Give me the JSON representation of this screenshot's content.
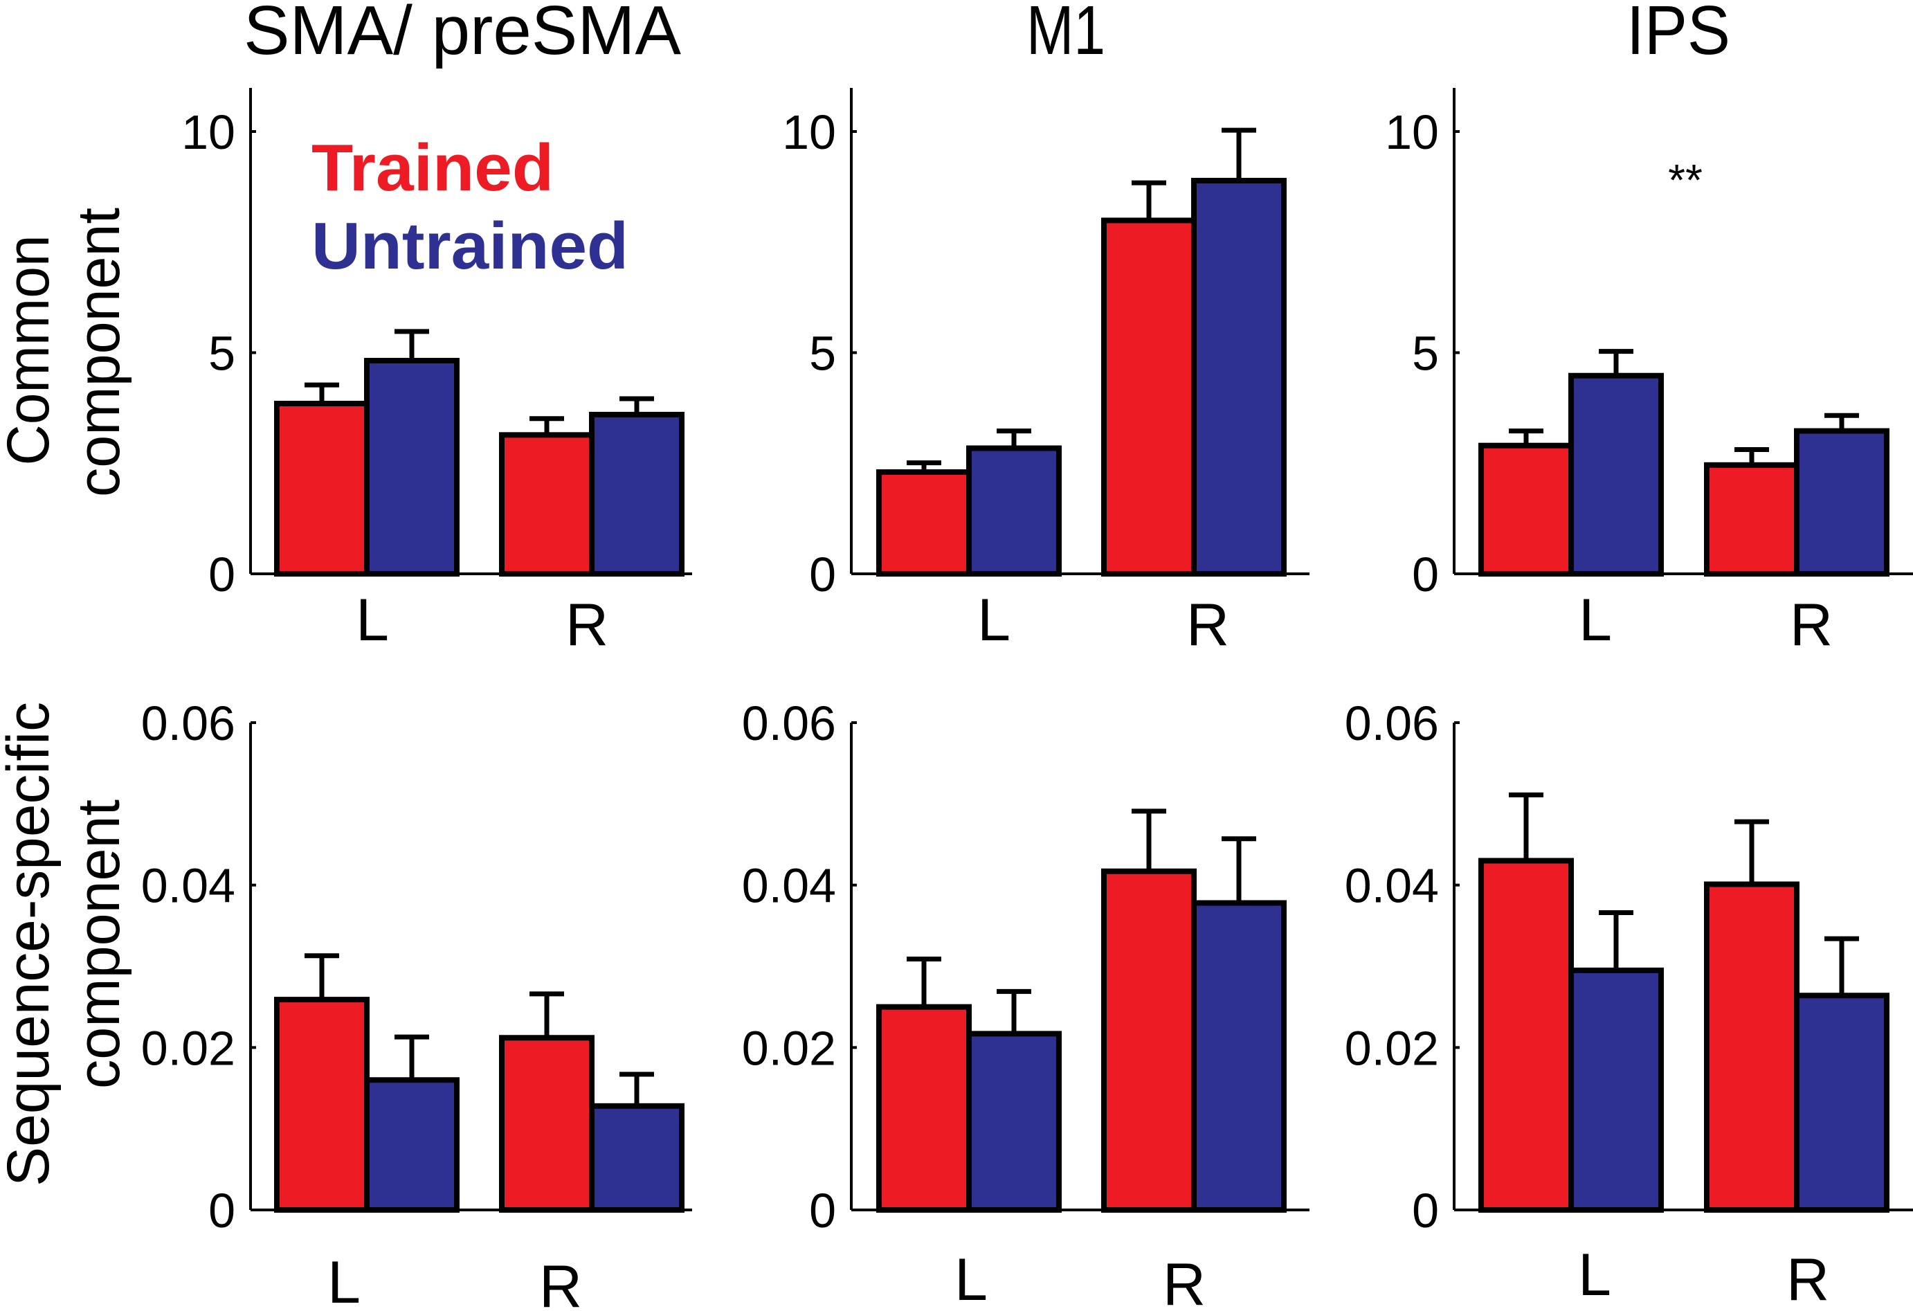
{
  "colors": {
    "trained": "#ED1C24",
    "untrained": "#2E3192",
    "axis": "#000000",
    "background": "#FFFFFF"
  },
  "legend": {
    "placement": "top-left of first panel",
    "items": [
      {
        "label": "Trained",
        "color": "#ED1C24"
      },
      {
        "label": "Untrained",
        "color": "#2E3192"
      }
    ]
  },
  "row_labels": {
    "top": [
      "Common",
      "component"
    ],
    "bottom": [
      "Sequence-specific",
      "component"
    ]
  },
  "column_titles": [
    "SMA/ preSMA",
    "M1",
    "IPS"
  ],
  "chart_data": [
    {
      "type": "bar",
      "title": "SMA/ preSMA",
      "ylabel": "Common component",
      "xlabel": "",
      "categories": [
        "L",
        "R"
      ],
      "ylim": [
        0,
        11
      ],
      "yticks": [
        0,
        5,
        10
      ],
      "ytick_labels": [
        "0",
        "5",
        "10"
      ],
      "grid": false,
      "series": [
        {
          "name": "Trained",
          "values": [
            3.85,
            3.14
          ],
          "error": [
            0.42,
            0.37
          ]
        },
        {
          "name": "Untrained",
          "values": [
            4.82,
            3.6
          ],
          "error": [
            0.66,
            0.36
          ]
        }
      ],
      "annotations": []
    },
    {
      "type": "bar",
      "title": "M1",
      "ylabel": "",
      "xlabel": "",
      "categories": [
        "L",
        "R"
      ],
      "ylim": [
        0,
        11
      ],
      "yticks": [
        0,
        5,
        10
      ],
      "ytick_labels": [
        "0",
        "5",
        "10"
      ],
      "grid": false,
      "series": [
        {
          "name": "Trained",
          "values": [
            2.3,
            7.99
          ],
          "error": [
            0.21,
            0.85
          ]
        },
        {
          "name": "Untrained",
          "values": [
            2.84,
            8.89
          ],
          "error": [
            0.39,
            1.14
          ]
        }
      ],
      "annotations": []
    },
    {
      "type": "bar",
      "title": "IPS",
      "ylabel": "",
      "xlabel": "",
      "categories": [
        "L",
        "R"
      ],
      "ylim": [
        0,
        11
      ],
      "yticks": [
        0,
        5,
        10
      ],
      "ytick_labels": [
        "0",
        "5",
        "10"
      ],
      "grid": false,
      "series": [
        {
          "name": "Trained",
          "values": [
            2.9,
            2.46
          ],
          "error": [
            0.33,
            0.35
          ]
        },
        {
          "name": "Untrained",
          "values": [
            4.48,
            3.23
          ],
          "error": [
            0.55,
            0.35
          ]
        }
      ],
      "annotations": [
        {
          "text": "**",
          "x_between": [
            "L",
            "R"
          ],
          "y": 9.0
        }
      ]
    },
    {
      "type": "bar",
      "title": "",
      "ylabel": "Sequence-specific component",
      "xlabel": "",
      "categories": [
        "L",
        "R"
      ],
      "ylim": [
        0,
        0.06
      ],
      "yticks": [
        0,
        0.02,
        0.04,
        0.06
      ],
      "ytick_labels": [
        "0",
        "0.02",
        "0.04",
        "0.06"
      ],
      "grid": false,
      "series": [
        {
          "name": "Trained",
          "values": [
            0.0259,
            0.0212
          ],
          "error": [
            0.0054,
            0.0054
          ]
        },
        {
          "name": "Untrained",
          "values": [
            0.016,
            0.0128
          ],
          "error": [
            0.0053,
            0.0039
          ]
        }
      ],
      "annotations": []
    },
    {
      "type": "bar",
      "title": "",
      "ylabel": "",
      "xlabel": "",
      "categories": [
        "L",
        "R"
      ],
      "ylim": [
        0,
        0.06
      ],
      "yticks": [
        0,
        0.02,
        0.04,
        0.06
      ],
      "ytick_labels": [
        "0",
        "0.02",
        "0.04",
        "0.06"
      ],
      "grid": false,
      "series": [
        {
          "name": "Trained",
          "values": [
            0.025,
            0.0417
          ],
          "error": [
            0.0059,
            0.0074
          ]
        },
        {
          "name": "Untrained",
          "values": [
            0.0217,
            0.0378
          ],
          "error": [
            0.0052,
            0.0079
          ]
        }
      ],
      "annotations": []
    },
    {
      "type": "bar",
      "title": "",
      "ylabel": "",
      "xlabel": "",
      "categories": [
        "L",
        "R"
      ],
      "ylim": [
        0,
        0.06
      ],
      "yticks": [
        0,
        0.02,
        0.04,
        0.06
      ],
      "ytick_labels": [
        "0",
        "0.02",
        "0.04",
        "0.06"
      ],
      "grid": false,
      "series": [
        {
          "name": "Trained",
          "values": [
            0.043,
            0.0401
          ],
          "error": [
            0.0081,
            0.0077
          ]
        },
        {
          "name": "Untrained",
          "values": [
            0.0295,
            0.0264
          ],
          "error": [
            0.0071,
            0.007
          ]
        }
      ],
      "annotations": []
    }
  ]
}
